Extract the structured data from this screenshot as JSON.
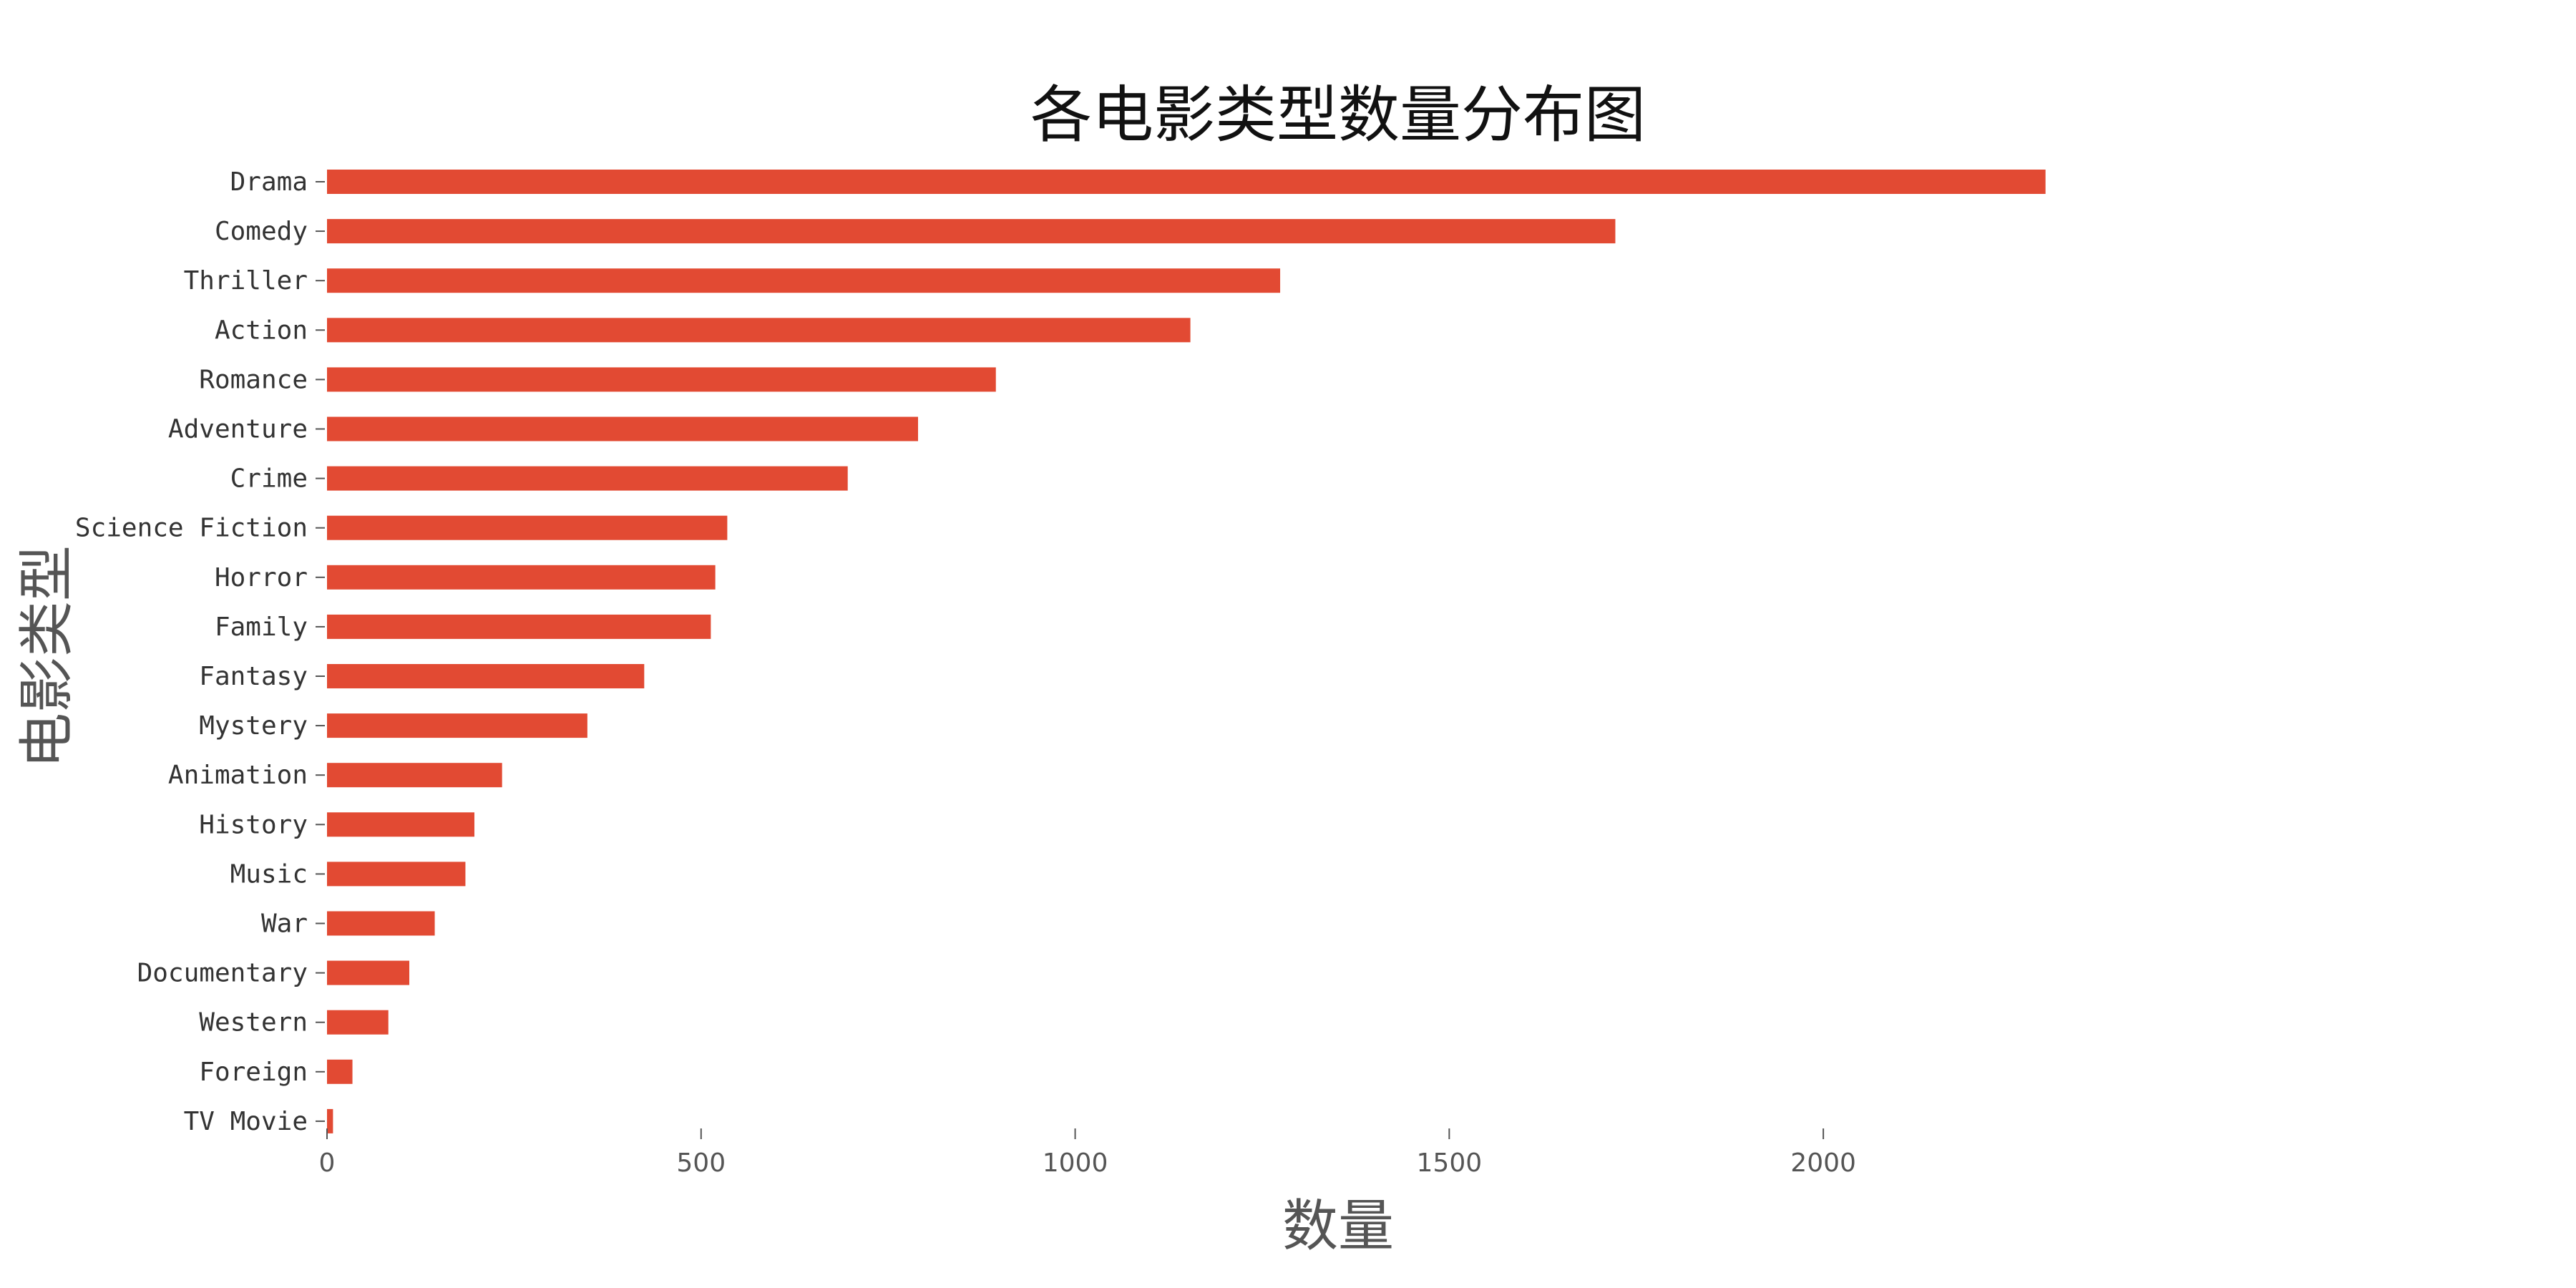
{
  "chart_data": {
    "type": "bar",
    "orientation": "horizontal",
    "title": "各电影类型数量分布图",
    "xlabel": "数量",
    "ylabel": "电影类型",
    "categories": [
      "Drama",
      "Comedy",
      "Thriller",
      "Action",
      "Romance",
      "Adventure",
      "Crime",
      "Science Fiction",
      "Horror",
      "Family",
      "Fantasy",
      "Mystery",
      "Animation",
      "History",
      "Music",
      "War",
      "Documentary",
      "Western",
      "Foreign",
      "TV Movie"
    ],
    "values": [
      2297,
      1722,
      1274,
      1154,
      894,
      790,
      696,
      535,
      519,
      513,
      424,
      348,
      234,
      197,
      185,
      144,
      110,
      82,
      34,
      8
    ],
    "xlim": [
      0,
      2700
    ],
    "xticks": [
      "0",
      "500",
      "1000",
      "1500",
      "2000"
    ],
    "grid": false,
    "legend": "none",
    "colors": {
      "bar": "#E24A33",
      "tick": "#555555",
      "title": "#111111"
    }
  }
}
